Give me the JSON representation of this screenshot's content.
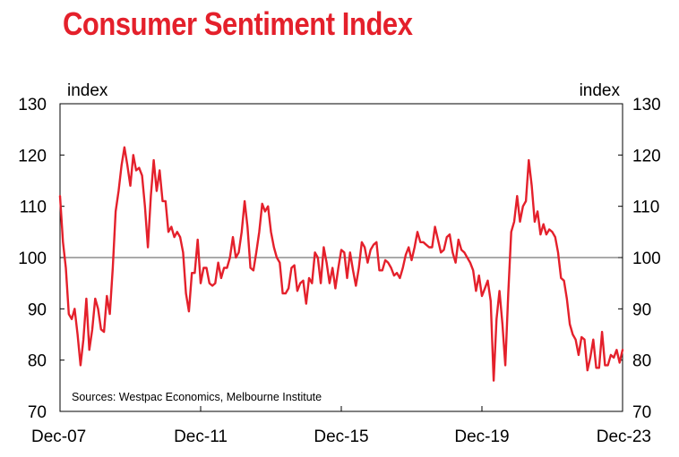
{
  "chart_data": {
    "type": "line",
    "title": "Consumer Sentiment Index",
    "ylabel_left": "index",
    "ylabel_right": "index",
    "ylim": [
      70,
      130
    ],
    "yticks": [
      70,
      80,
      90,
      100,
      110,
      120,
      130
    ],
    "reference_line": 100,
    "xlim": [
      2007.917,
      2023.917
    ],
    "xticks": [
      {
        "label": "Dec-07",
        "value": 2007.917
      },
      {
        "label": "Dec-11",
        "value": 2011.917
      },
      {
        "label": "Dec-15",
        "value": 2015.917
      },
      {
        "label": "Dec-19",
        "value": 2019.917
      },
      {
        "label": "Dec-23",
        "value": 2023.917
      }
    ],
    "source": "Sources: Westpac Economics, Melbourne Institute",
    "series": [
      {
        "name": "Consumer Sentiment Index",
        "color": "#e4202b",
        "points": [
          [
            2007.917,
            112
          ],
          [
            2008.0,
            103
          ],
          [
            2008.083,
            98
          ],
          [
            2008.167,
            89
          ],
          [
            2008.25,
            88
          ],
          [
            2008.333,
            90
          ],
          [
            2008.417,
            85
          ],
          [
            2008.5,
            79
          ],
          [
            2008.583,
            84
          ],
          [
            2008.667,
            92
          ],
          [
            2008.75,
            82
          ],
          [
            2008.833,
            86
          ],
          [
            2008.917,
            92
          ],
          [
            2009.0,
            90
          ],
          [
            2009.083,
            86
          ],
          [
            2009.167,
            85.5
          ],
          [
            2009.25,
            92.5
          ],
          [
            2009.333,
            89
          ],
          [
            2009.417,
            98
          ],
          [
            2009.5,
            109
          ],
          [
            2009.583,
            113
          ],
          [
            2009.667,
            118
          ],
          [
            2009.75,
            121.5
          ],
          [
            2009.833,
            118
          ],
          [
            2009.917,
            114
          ],
          [
            2010.0,
            120
          ],
          [
            2010.083,
            117
          ],
          [
            2010.167,
            117.5
          ],
          [
            2010.25,
            116
          ],
          [
            2010.333,
            110
          ],
          [
            2010.417,
            102
          ],
          [
            2010.5,
            112
          ],
          [
            2010.583,
            119
          ],
          [
            2010.667,
            113
          ],
          [
            2010.75,
            117
          ],
          [
            2010.833,
            111
          ],
          [
            2010.917,
            111
          ],
          [
            2011.0,
            105
          ],
          [
            2011.083,
            106
          ],
          [
            2011.167,
            104
          ],
          [
            2011.25,
            105
          ],
          [
            2011.333,
            104
          ],
          [
            2011.417,
            101
          ],
          [
            2011.5,
            93
          ],
          [
            2011.583,
            89.5
          ],
          [
            2011.667,
            97
          ],
          [
            2011.75,
            97
          ],
          [
            2011.833,
            103.5
          ],
          [
            2011.917,
            95
          ],
          [
            2012.0,
            98
          ],
          [
            2012.083,
            98
          ],
          [
            2012.167,
            95
          ],
          [
            2012.25,
            94.5
          ],
          [
            2012.333,
            95
          ],
          [
            2012.417,
            99
          ],
          [
            2012.5,
            96
          ],
          [
            2012.583,
            98
          ],
          [
            2012.667,
            98
          ],
          [
            2012.75,
            100
          ],
          [
            2012.833,
            104
          ],
          [
            2012.917,
            100
          ],
          [
            2013.0,
            101
          ],
          [
            2013.083,
            105
          ],
          [
            2013.167,
            111
          ],
          [
            2013.25,
            106
          ],
          [
            2013.333,
            98
          ],
          [
            2013.417,
            97.5
          ],
          [
            2013.5,
            101
          ],
          [
            2013.583,
            105
          ],
          [
            2013.667,
            110.5
          ],
          [
            2013.75,
            109
          ],
          [
            2013.833,
            110
          ],
          [
            2013.917,
            105
          ],
          [
            2014.0,
            102
          ],
          [
            2014.083,
            100
          ],
          [
            2014.167,
            99
          ],
          [
            2014.25,
            93
          ],
          [
            2014.333,
            93
          ],
          [
            2014.417,
            94
          ],
          [
            2014.5,
            98
          ],
          [
            2014.583,
            98.5
          ],
          [
            2014.667,
            93.5
          ],
          [
            2014.75,
            95
          ],
          [
            2014.833,
            95.5
          ],
          [
            2014.917,
            91
          ],
          [
            2015.0,
            96
          ],
          [
            2015.083,
            95
          ],
          [
            2015.167,
            101
          ],
          [
            2015.25,
            100
          ],
          [
            2015.333,
            95
          ],
          [
            2015.417,
            102
          ],
          [
            2015.5,
            99
          ],
          [
            2015.583,
            95
          ],
          [
            2015.667,
            98
          ],
          [
            2015.75,
            94
          ],
          [
            2015.833,
            98
          ],
          [
            2015.917,
            101.5
          ],
          [
            2016.0,
            101
          ],
          [
            2016.083,
            96
          ],
          [
            2016.167,
            101
          ],
          [
            2016.25,
            97.5
          ],
          [
            2016.333,
            94.5
          ],
          [
            2016.417,
            98
          ],
          [
            2016.5,
            103
          ],
          [
            2016.583,
            102
          ],
          [
            2016.667,
            99
          ],
          [
            2016.75,
            101.5
          ],
          [
            2016.833,
            102.5
          ],
          [
            2016.917,
            103
          ],
          [
            2017.0,
            97.5
          ],
          [
            2017.083,
            97.5
          ],
          [
            2017.167,
            99.5
          ],
          [
            2017.25,
            99
          ],
          [
            2017.333,
            98
          ],
          [
            2017.417,
            96.5
          ],
          [
            2017.5,
            97
          ],
          [
            2017.583,
            96
          ],
          [
            2017.667,
            98
          ],
          [
            2017.75,
            100.5
          ],
          [
            2017.833,
            102
          ],
          [
            2017.917,
            99.5
          ],
          [
            2018.0,
            102
          ],
          [
            2018.083,
            105
          ],
          [
            2018.167,
            103
          ],
          [
            2018.25,
            103
          ],
          [
            2018.333,
            102.5
          ],
          [
            2018.417,
            102
          ],
          [
            2018.5,
            102
          ],
          [
            2018.583,
            106
          ],
          [
            2018.667,
            103.5
          ],
          [
            2018.75,
            101
          ],
          [
            2018.833,
            101.5
          ],
          [
            2018.917,
            104
          ],
          [
            2019.0,
            104.5
          ],
          [
            2019.083,
            101
          ],
          [
            2019.167,
            99
          ],
          [
            2019.25,
            103.5
          ],
          [
            2019.333,
            101.5
          ],
          [
            2019.417,
            101
          ],
          [
            2019.5,
            100
          ],
          [
            2019.583,
            99
          ],
          [
            2019.667,
            97.5
          ],
          [
            2019.75,
            93.5
          ],
          [
            2019.833,
            96.5
          ],
          [
            2019.917,
            92.5
          ],
          [
            2020.0,
            94
          ],
          [
            2020.083,
            95.5
          ],
          [
            2020.167,
            91.5
          ],
          [
            2020.25,
            76
          ],
          [
            2020.333,
            88
          ],
          [
            2020.417,
            93.5
          ],
          [
            2020.5,
            87
          ],
          [
            2020.583,
            79
          ],
          [
            2020.667,
            93
          ],
          [
            2020.75,
            105
          ],
          [
            2020.833,
            107
          ],
          [
            2020.917,
            112
          ],
          [
            2021.0,
            107
          ],
          [
            2021.083,
            110
          ],
          [
            2021.167,
            111
          ],
          [
            2021.25,
            119
          ],
          [
            2021.333,
            114
          ],
          [
            2021.417,
            107
          ],
          [
            2021.5,
            109
          ],
          [
            2021.583,
            104.5
          ],
          [
            2021.667,
            106.5
          ],
          [
            2021.75,
            104.5
          ],
          [
            2021.833,
            105.5
          ],
          [
            2021.917,
            105
          ],
          [
            2022.0,
            104
          ],
          [
            2022.083,
            101
          ],
          [
            2022.167,
            96
          ],
          [
            2022.25,
            95.5
          ],
          [
            2022.333,
            92
          ],
          [
            2022.417,
            87
          ],
          [
            2022.5,
            85
          ],
          [
            2022.583,
            84
          ],
          [
            2022.667,
            81
          ],
          [
            2022.75,
            84.5
          ],
          [
            2022.833,
            84
          ],
          [
            2022.917,
            78
          ],
          [
            2023.0,
            80.5
          ],
          [
            2023.083,
            84
          ],
          [
            2023.167,
            78.5
          ],
          [
            2023.25,
            78.5
          ],
          [
            2023.333,
            85.5
          ],
          [
            2023.417,
            79
          ],
          [
            2023.5,
            79
          ],
          [
            2023.583,
            81
          ],
          [
            2023.667,
            80.5
          ],
          [
            2023.75,
            82
          ],
          [
            2023.833,
            79.5
          ],
          [
            2023.917,
            82
          ]
        ]
      }
    ]
  }
}
